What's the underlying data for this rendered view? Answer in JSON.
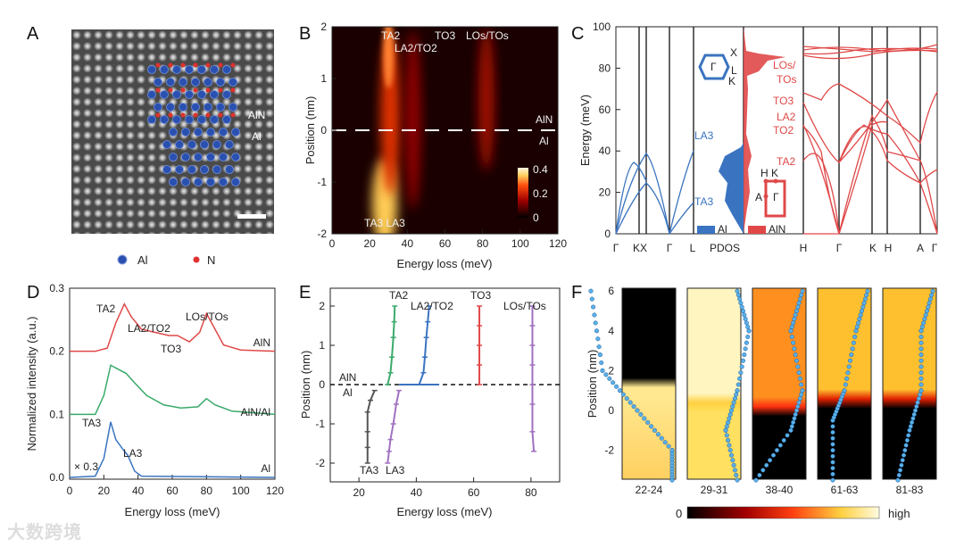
{
  "panels": {
    "a": "A",
    "b": "B",
    "c": "C",
    "d": "D",
    "e": "E",
    "f": "F"
  },
  "watermark": "大数跨境",
  "colors": {
    "al_blue": "#3a74c0",
    "aln_red": "#e04848",
    "green": "#3aaa6a",
    "purple": "#a070c0",
    "gray": "#555555",
    "n_red": "#e03030"
  },
  "panel_a": {
    "labels": {
      "aln": "AlN",
      "al": "Al"
    },
    "legend": [
      {
        "label": "Al",
        "color": "#2a50b0"
      },
      {
        "label": "N",
        "color": "#e03030"
      }
    ]
  },
  "chart_data": [
    {
      "id": "B",
      "type": "heatmap",
      "xlabel": "Energy loss (meV)",
      "ylabel": "Position (nm)",
      "xlim": [
        0,
        120
      ],
      "ylim": [
        -2,
        2
      ],
      "xticks": [
        "0",
        "20",
        "40",
        "60",
        "80",
        "100",
        "120"
      ],
      "yticks": [
        "-2",
        "-1",
        "0",
        "1",
        "2"
      ],
      "colorbar": {
        "ticks": [
          "0",
          "0.2",
          "0.4"
        ],
        "range": [
          0,
          0.4
        ]
      },
      "interface_labels": {
        "top": "AlN",
        "bottom": "Al"
      },
      "annotations": {
        "ta2": "TA2",
        "la2to2": "LA2/TO2",
        "to3": "TO3",
        "lostos": "LOs/TOs",
        "ta3la3": "TA3 LA3"
      }
    },
    {
      "id": "C",
      "type": "line",
      "ylabel": "Energy (meV)",
      "ylim": [
        0,
        100
      ],
      "yticks": [
        "0",
        "20",
        "40",
        "60",
        "80",
        "100"
      ],
      "xticks": [
        "Γ",
        "KX",
        "Γ",
        "L",
        "PDOS",
        "H",
        "Γ",
        "K",
        "H",
        "A",
        "Γ"
      ],
      "legend": [
        {
          "label": "Al",
          "color": "#3a74c0"
        },
        {
          "label": "AlN",
          "color": "#e04848"
        }
      ],
      "annotations_al": [
        "LA3",
        "TA3"
      ],
      "annotations_aln": [
        "LOs/",
        "TOs",
        "TO3",
        "LA2",
        "TO2",
        "TA2"
      ],
      "bz_al": [
        "Γ",
        "X",
        "L",
        "K"
      ],
      "bz_aln": [
        "H",
        "K",
        "A",
        "Γ"
      ]
    },
    {
      "id": "D",
      "type": "line",
      "xlabel": "Energy loss (meV)",
      "ylabel": "Normalized intensity (a.u.)",
      "xlim": [
        0,
        120
      ],
      "ylim": [
        0,
        0.3
      ],
      "xticks": [
        "0",
        "20",
        "40",
        "60",
        "80",
        "100",
        "120"
      ],
      "yticks": [
        "0.0",
        "0.1",
        "0.2",
        "0.3"
      ],
      "scale_note": "× 0.3",
      "annotations": {
        "ta2": "TA2",
        "la2to2": "LA2/TO2",
        "to3": "TO3",
        "lostos": "LOs/TOs",
        "ta3": "TA3",
        "la3": "LA3"
      },
      "series": [
        {
          "name": "AlN",
          "color": "#e04848",
          "points": [
            [
              0,
              0.2
            ],
            [
              15,
              0.2
            ],
            [
              22,
              0.205
            ],
            [
              27,
              0.245
            ],
            [
              32,
              0.275
            ],
            [
              36,
              0.255
            ],
            [
              42,
              0.235
            ],
            [
              50,
              0.23
            ],
            [
              58,
              0.225
            ],
            [
              63,
              0.225
            ],
            [
              70,
              0.215
            ],
            [
              76,
              0.23
            ],
            [
              80,
              0.26
            ],
            [
              84,
              0.24
            ],
            [
              90,
              0.21
            ],
            [
              100,
              0.202
            ],
            [
              120,
              0.2
            ]
          ]
        },
        {
          "name": "AlN/Al",
          "color": "#3aaa6a",
          "points": [
            [
              0,
              0.1
            ],
            [
              15,
              0.1
            ],
            [
              20,
              0.13
            ],
            [
              24,
              0.178
            ],
            [
              28,
              0.172
            ],
            [
              33,
              0.165
            ],
            [
              38,
              0.15
            ],
            [
              45,
              0.13
            ],
            [
              55,
              0.115
            ],
            [
              65,
              0.11
            ],
            [
              75,
              0.112
            ],
            [
              80,
              0.125
            ],
            [
              85,
              0.115
            ],
            [
              95,
              0.105
            ],
            [
              120,
              0.1
            ]
          ]
        },
        {
          "name": "Al",
          "color": "#3a74c0",
          "points": [
            [
              0,
              0
            ],
            [
              15,
              0.002
            ],
            [
              20,
              0.03
            ],
            [
              24,
              0.088
            ],
            [
              27,
              0.06
            ],
            [
              31,
              0.045
            ],
            [
              34,
              0.035
            ],
            [
              38,
              0.01
            ],
            [
              42,
              0.002
            ],
            [
              120,
              0
            ]
          ]
        }
      ]
    },
    {
      "id": "E",
      "type": "scatter",
      "xlabel": "Energy loss (meV)",
      "ylabel": "Position (nm)",
      "xlim": [
        10,
        90
      ],
      "ylim": [
        -2.5,
        2.5
      ],
      "xticks": [
        "20",
        "40",
        "60",
        "80"
      ],
      "yticks": [
        "-2",
        "-1",
        "0",
        "1",
        "2"
      ],
      "interface_labels": {
        "top": "AlN",
        "bottom": "Al"
      },
      "series": [
        {
          "name": "TA2",
          "color": "#3aaa6a",
          "points": [
            [
              30,
              0
            ],
            [
              31,
              0.3
            ],
            [
              31.5,
              0.7
            ],
            [
              32,
              1.2
            ],
            [
              32.3,
              1.6
            ],
            [
              32.5,
              2
            ]
          ]
        },
        {
          "name": "LA2/TO2",
          "color": "#3a74c0",
          "points": [
            [
              41,
              0
            ],
            [
              42.5,
              0.3
            ],
            [
              43,
              0.7
            ],
            [
              43.5,
              1.2
            ],
            [
              44,
              1.6
            ],
            [
              44.5,
              2
            ]
          ],
          "interface_segment": [
            34,
            48
          ]
        },
        {
          "name": "TO3",
          "color": "#e04848",
          "points": [
            [
              62,
              0
            ],
            [
              62,
              0.5
            ],
            [
              62,
              1
            ],
            [
              62,
              1.5
            ],
            [
              62,
              2
            ]
          ]
        },
        {
          "name": "LOs/TOs",
          "color": "#a070c0",
          "points": [
            [
              81,
              -1.7
            ],
            [
              80.5,
              -1.2
            ],
            [
              80.5,
              -0.5
            ],
            [
              80.5,
              0
            ],
            [
              80.5,
              0.5
            ],
            [
              80.5,
              1
            ],
            [
              80.5,
              1.5
            ],
            [
              80.5,
              2
            ]
          ]
        },
        {
          "name": "TA3",
          "color": "#555555",
          "points": [
            [
              25.5,
              -0.15
            ],
            [
              24,
              -0.4
            ],
            [
              23,
              -0.7
            ],
            [
              23,
              -1.2
            ],
            [
              23,
              -1.6
            ],
            [
              23,
              -2
            ]
          ]
        },
        {
          "name": "LA3",
          "color": "#a070c0",
          "points": [
            [
              34,
              -0.15
            ],
            [
              33,
              -0.5
            ],
            [
              32,
              -1
            ],
            [
              31,
              -1.4
            ],
            [
              30.5,
              -1.7
            ],
            [
              30,
              -2
            ]
          ]
        }
      ]
    },
    {
      "id": "F",
      "type": "heatmap",
      "ylabel": "Position (nm)",
      "ylim": [
        -3.5,
        6.2
      ],
      "yticks": [
        "6",
        "4",
        "2",
        "0",
        "-2"
      ],
      "strips": [
        {
          "label": "22-24",
          "trace": [
            [
              24,
              -3.5
            ],
            [
              24,
              -2
            ],
            [
              22.5,
              0
            ],
            [
              21,
              2
            ],
            [
              20.5,
              6
            ]
          ]
        },
        {
          "label": "29-31",
          "trace": [
            [
              31,
              -3.5
            ],
            [
              30.5,
              -1
            ],
            [
              31,
              1
            ],
            [
              31.5,
              4
            ],
            [
              31,
              6
            ]
          ]
        },
        {
          "label": "38-40",
          "trace": [
            [
              38,
              -3.5
            ],
            [
              39.5,
              -1
            ],
            [
              40,
              1
            ],
            [
              39.5,
              4
            ],
            [
              40,
              6
            ]
          ]
        },
        {
          "label": "61-63",
          "trace": [
            [
              61.5,
              -3.5
            ],
            [
              61.5,
              -0.5
            ],
            [
              62,
              1
            ],
            [
              62.5,
              4
            ],
            [
              63,
              6
            ]
          ]
        },
        {
          "label": "81-83",
          "trace": [
            [
              81.5,
              -3.5
            ],
            [
              82,
              -1
            ],
            [
              82.5,
              1
            ],
            [
              82.5,
              4
            ],
            [
              83,
              6
            ]
          ]
        }
      ],
      "colorbar": {
        "low": "0",
        "high": "high"
      }
    }
  ]
}
